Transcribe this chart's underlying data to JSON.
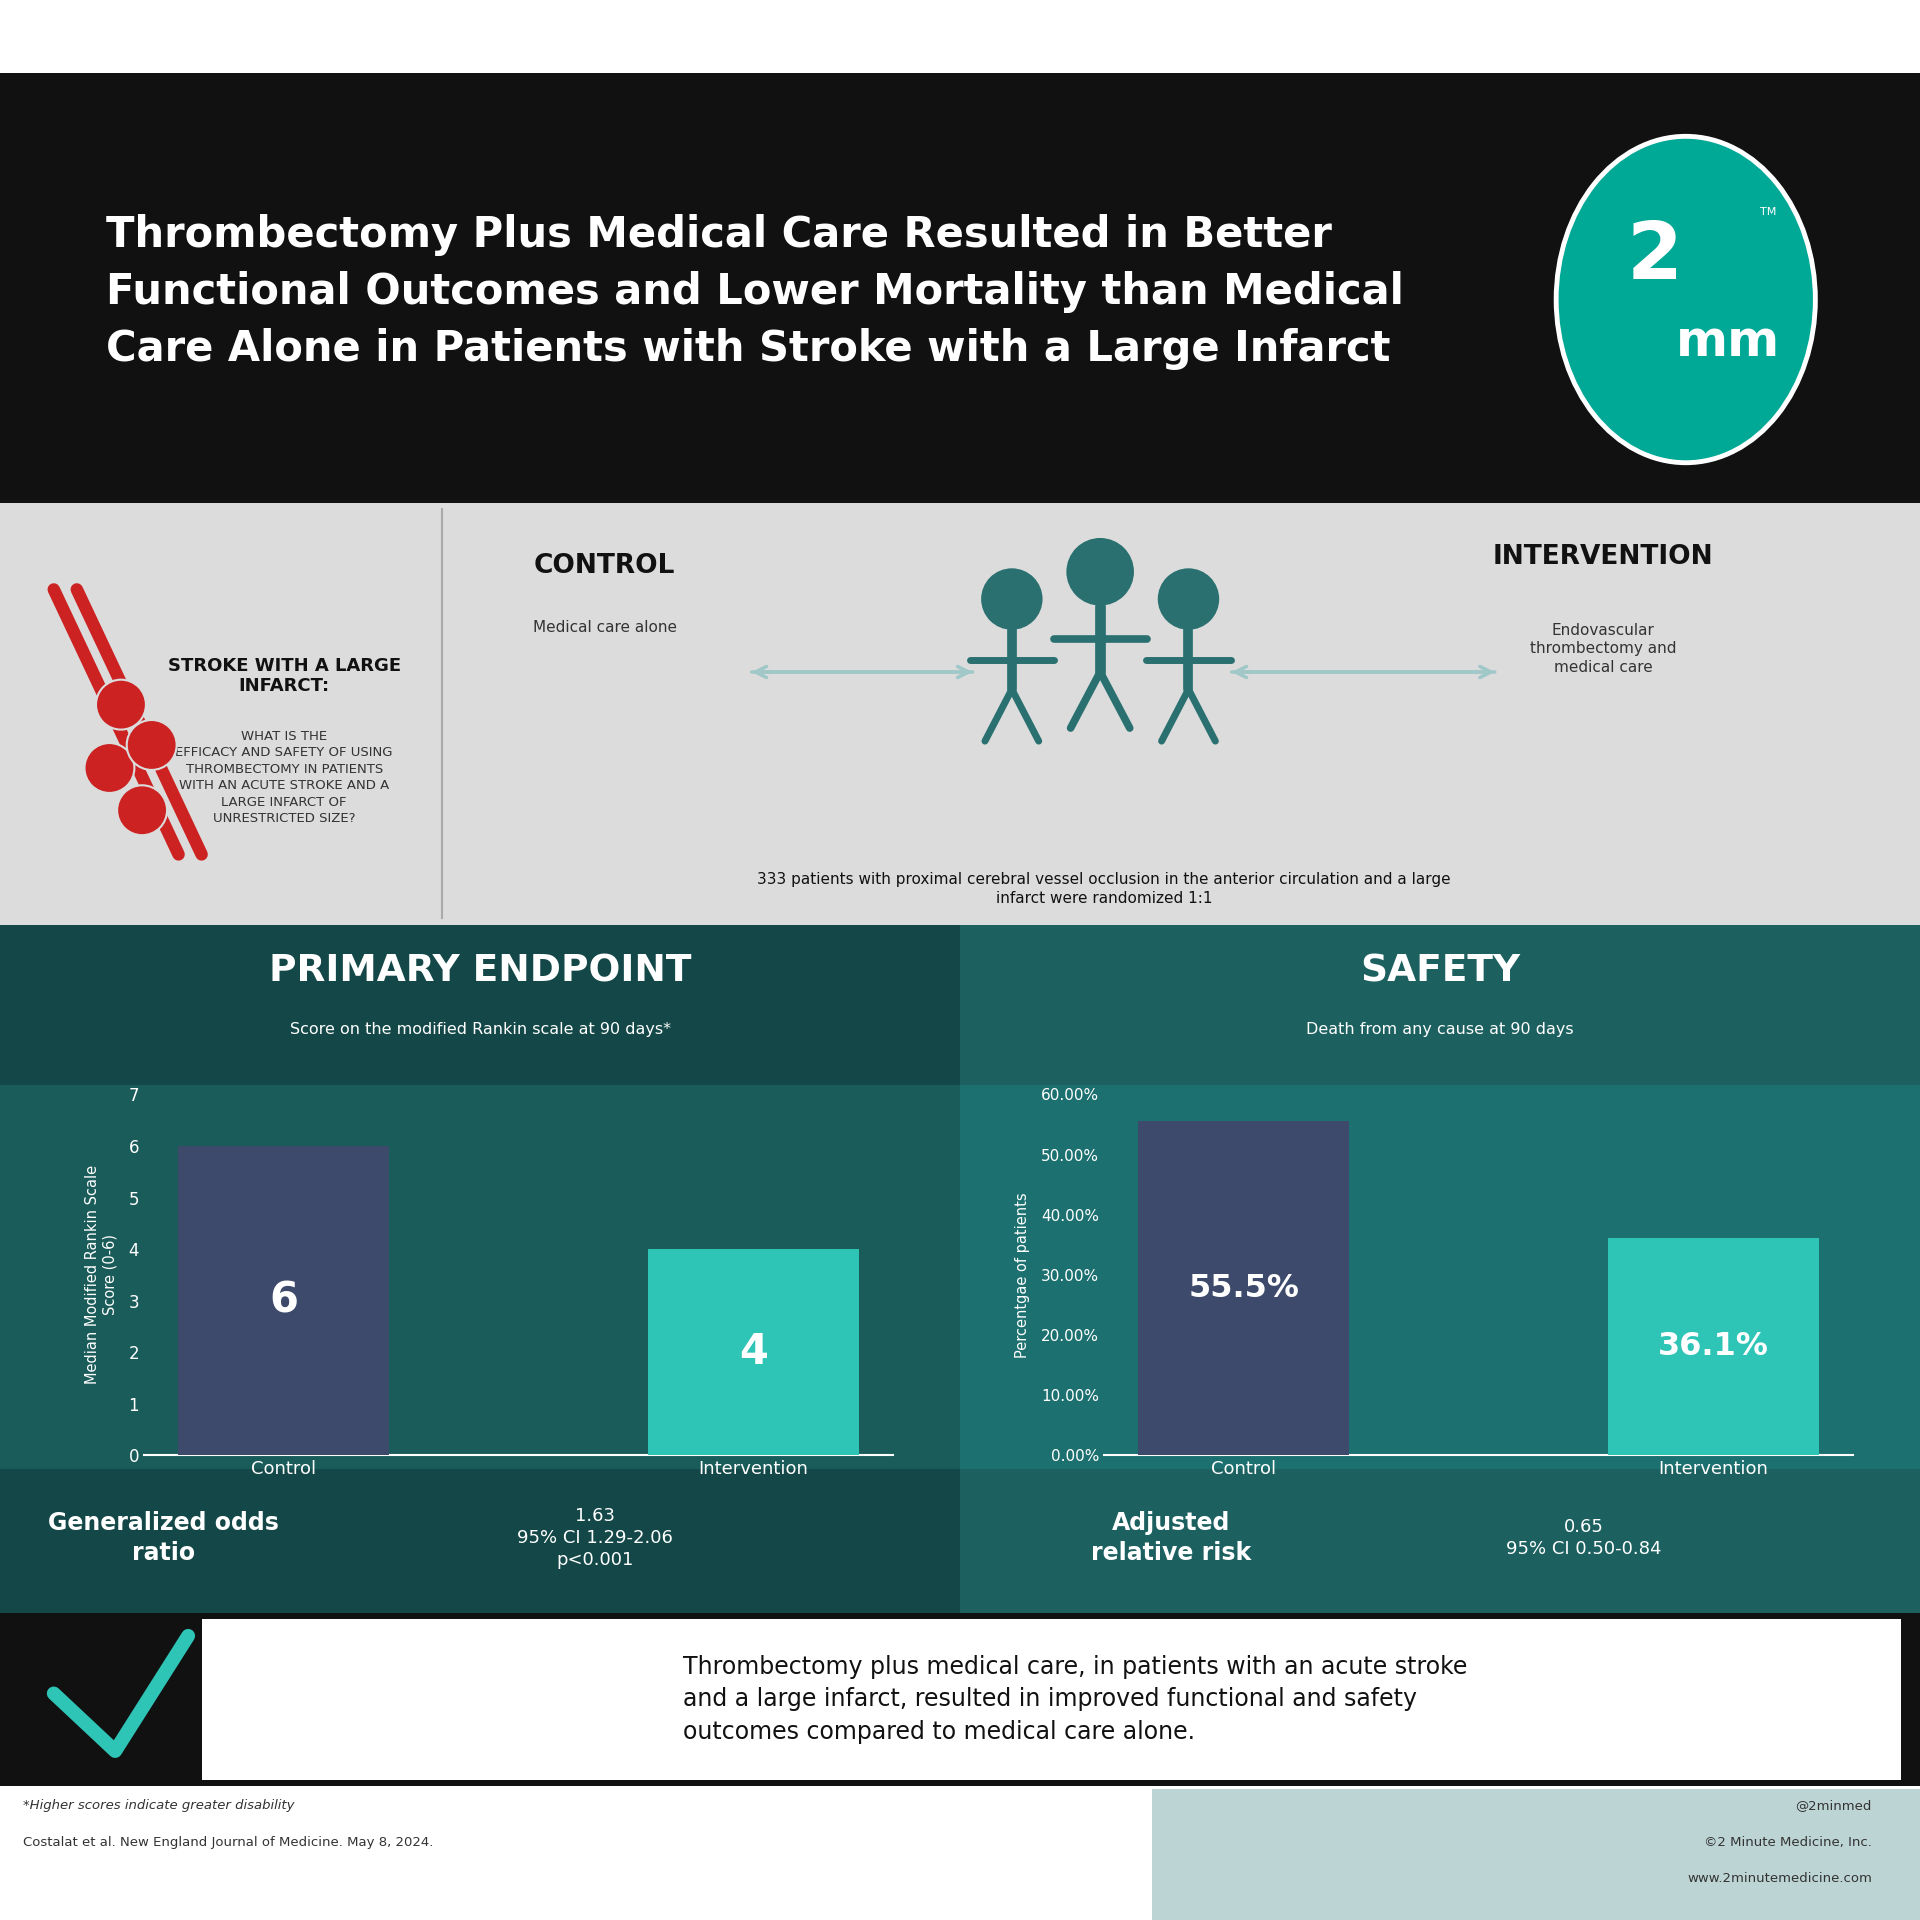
{
  "title_line1": "Thrombectomy Plus Medical Care Resulted in Better",
  "title_line2": "Functional Outcomes and Lower Mortality than Medical",
  "title_line3": "Care Alone in Patients with Stroke with a Large Infarct",
  "bg_black": "#111111",
  "bg_gray": "#DCDCDC",
  "bg_teal_left": "#1A5C5A",
  "bg_teal_right": "#1D7070",
  "bg_teal_header_left": "#144848",
  "bg_teal_header_right": "#1D6060",
  "bg_teal_logo": "#00A896",
  "color_white": "#FFFFFF",
  "color_dark_navy": "#3D4A6B",
  "color_teal_bar": "#2EC4B6",
  "color_red": "#CC2222",
  "color_people": "#2A7070",
  "color_arrow": "#A0C8C8",
  "question_bold": "STROKE WITH A LARGE\nINFARCT:",
  "question_small": "WHAT IS THE\nEFFICACY AND SAFETY OF USING\nTHROMBECTOMY IN PATIENTS\nWITH AN ACUTE STROKE AND A\nLARGE INFARCT OF\nUNRESTRICTED SIZE?",
  "control_label": "CONTROL",
  "control_sub": "Medical care alone",
  "intervention_label": "INTERVENTION",
  "intervention_sub": "Endovascular\nthrombectomy and\nmedical care",
  "patients_text": "333 patients with proximal cerebral vessel occlusion in the anterior circulation and a large\ninfarct were randomized 1:1",
  "primary_title": "PRIMARY ENDPOINT",
  "primary_sub": "Score on the modified Rankin scale at 90 days*",
  "safety_title": "SAFETY",
  "safety_sub": "Death from any cause at 90 days",
  "bar1_value": 6,
  "bar2_value": 4,
  "bar3_value": 55.5,
  "bar4_value": 36.1,
  "bar_control_color": "#3D4A6B",
  "bar_intervention_color": "#2EC4B6",
  "primary_ylim": [
    0,
    7
  ],
  "safety_ylim": [
    0,
    60
  ],
  "safety_yticks": [
    0,
    10,
    20,
    30,
    40,
    50,
    60
  ],
  "primary_yticks": [
    0,
    1,
    2,
    3,
    4,
    5,
    6,
    7
  ],
  "odds_ratio_bold": "Generalized odds\nratio",
  "odds_ratio_value": "1.63\n95% CI 1.29-2.06\np<0.001",
  "adj_risk_bold": "Adjusted\nrelative risk",
  "adj_risk_value": "0.65\n95% CI 0.50-0.84",
  "conclusion": "Thrombectomy plus medical care, in patients with an acute stroke\nand a large infarct, resulted in improved functional and safety\noutcomes compared to medical care alone.",
  "footnote1": "*Higher scores indicate greater disability",
  "footnote2": "Costalat et al. New England Journal of Medicine. May 8, 2024.",
  "footnote3": "@2minmed",
  "footnote4": "©2 Minute Medicine, Inc.",
  "footnote5": "www.2minutemedicine.com"
}
